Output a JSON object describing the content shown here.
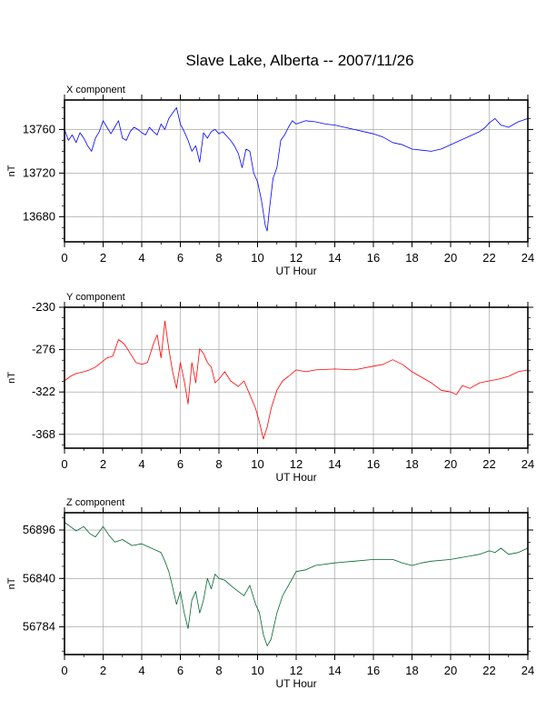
{
  "title": "Slave Lake, Alberta -- 2007/11/26",
  "chart_data": [
    {
      "type": "line",
      "panel_label": "X component",
      "xlabel": "UT Hour",
      "ylabel": "nT",
      "xlim": [
        0,
        24
      ],
      "ylim": [
        13657,
        13787
      ],
      "xticks": [
        0,
        2,
        4,
        6,
        8,
        10,
        12,
        14,
        16,
        18,
        20,
        22,
        24
      ],
      "yticks": [
        13680,
        13720,
        13760
      ],
      "grid": true,
      "color": "#0000ff",
      "x": [
        0,
        0.2,
        0.4,
        0.6,
        0.8,
        1.0,
        1.2,
        1.4,
        1.6,
        1.8,
        2.0,
        2.2,
        2.4,
        2.6,
        2.8,
        3.0,
        3.2,
        3.4,
        3.6,
        3.8,
        4.0,
        4.2,
        4.4,
        4.6,
        4.8,
        5.0,
        5.2,
        5.4,
        5.6,
        5.8,
        6.0,
        6.2,
        6.4,
        6.6,
        6.8,
        7.0,
        7.2,
        7.4,
        7.6,
        7.8,
        8.0,
        8.2,
        8.4,
        8.6,
        8.8,
        9.0,
        9.2,
        9.4,
        9.6,
        9.8,
        10.0,
        10.2,
        10.4,
        10.5,
        10.6,
        10.8,
        11.0,
        11.2,
        11.4,
        11.6,
        11.8,
        12.0,
        12.5,
        13.0,
        13.5,
        14.0,
        14.5,
        15.0,
        15.5,
        16.0,
        16.5,
        17.0,
        17.5,
        18.0,
        18.5,
        19.0,
        19.5,
        20.0,
        20.5,
        21.0,
        21.5,
        21.8,
        22.0,
        22.3,
        22.6,
        23.0,
        23.5,
        24.0
      ],
      "y": [
        13760,
        13750,
        13755,
        13748,
        13757,
        13752,
        13745,
        13740,
        13752,
        13758,
        13768,
        13762,
        13756,
        13762,
        13768,
        13752,
        13750,
        13758,
        13762,
        13760,
        13757,
        13755,
        13762,
        13758,
        13755,
        13765,
        13760,
        13770,
        13775,
        13780,
        13765,
        13758,
        13750,
        13740,
        13745,
        13730,
        13757,
        13752,
        13758,
        13760,
        13756,
        13758,
        13754,
        13750,
        13745,
        13738,
        13725,
        13742,
        13740,
        13720,
        13712,
        13695,
        13672,
        13667,
        13685,
        13715,
        13725,
        13750,
        13755,
        13762,
        13768,
        13765,
        13768,
        13767,
        13765,
        13764,
        13762,
        13760,
        13758,
        13756,
        13753,
        13748,
        13746,
        13742,
        13741,
        13740,
        13742,
        13746,
        13750,
        13754,
        13758,
        13762,
        13766,
        13770,
        13764,
        13762,
        13767,
        13770
      ]
    },
    {
      "type": "line",
      "panel_label": "Y component",
      "xlabel": "UT Hour",
      "ylabel": "nT",
      "xlim": [
        0,
        24
      ],
      "ylim": [
        -383,
        -230
      ],
      "xticks": [
        0,
        2,
        4,
        6,
        8,
        10,
        12,
        14,
        16,
        18,
        20,
        22,
        24
      ],
      "yticks": [
        -230,
        -276,
        -322,
        -368
      ],
      "grid": true,
      "color": "#ff0000",
      "x": [
        0,
        0.3,
        0.6,
        1.0,
        1.3,
        1.6,
        1.9,
        2.2,
        2.5,
        2.8,
        3.1,
        3.4,
        3.7,
        4.0,
        4.3,
        4.6,
        4.8,
        5.0,
        5.2,
        5.4,
        5.6,
        5.8,
        6.0,
        6.2,
        6.4,
        6.6,
        6.8,
        7.0,
        7.2,
        7.4,
        7.6,
        7.8,
        8.0,
        8.3,
        8.6,
        9.0,
        9.3,
        9.6,
        9.9,
        10.1,
        10.3,
        10.5,
        10.7,
        11.0,
        11.3,
        11.6,
        12.0,
        12.5,
        13.0,
        14.0,
        15.0,
        16.0,
        16.5,
        17.0,
        17.5,
        18.0,
        18.5,
        19.0,
        19.5,
        20.0,
        20.3,
        20.6,
        21.0,
        21.5,
        22.0,
        22.5,
        23.0,
        23.5,
        24.0
      ],
      "y": [
        -310,
        -305,
        -302,
        -300,
        -298,
        -295,
        -290,
        -285,
        -283,
        -265,
        -270,
        -280,
        -290,
        -292,
        -290,
        -270,
        -260,
        -285,
        -245,
        -275,
        -300,
        -318,
        -290,
        -310,
        -335,
        -290,
        -312,
        -275,
        -280,
        -290,
        -295,
        -312,
        -308,
        -300,
        -310,
        -316,
        -310,
        -325,
        -340,
        -355,
        -373,
        -360,
        -340,
        -320,
        -310,
        -305,
        -298,
        -300,
        -298,
        -297,
        -298,
        -294,
        -292,
        -287,
        -292,
        -300,
        -306,
        -312,
        -320,
        -322,
        -325,
        -315,
        -318,
        -312,
        -310,
        -308,
        -305,
        -300,
        -298
      ]
    },
    {
      "type": "line",
      "panel_label": "Z component",
      "xlabel": "UT Hour",
      "ylabel": "nT",
      "xlim": [
        0,
        24
      ],
      "ylim": [
        56752,
        56916
      ],
      "xticks": [
        0,
        2,
        4,
        6,
        8,
        10,
        12,
        14,
        16,
        18,
        20,
        22,
        24
      ],
      "yticks": [
        56784,
        56840,
        56896
      ],
      "grid": true,
      "color": "#006633",
      "x": [
        0,
        0.3,
        0.6,
        1.0,
        1.3,
        1.6,
        2.0,
        2.3,
        2.6,
        3.0,
        3.5,
        4.0,
        4.5,
        5.0,
        5.2,
        5.4,
        5.6,
        5.8,
        6.0,
        6.2,
        6.4,
        6.6,
        6.8,
        7.0,
        7.2,
        7.4,
        7.6,
        7.8,
        8.0,
        8.3,
        8.6,
        9.0,
        9.3,
        9.6,
        9.9,
        10.1,
        10.3,
        10.5,
        10.7,
        11.0,
        11.3,
        11.6,
        12.0,
        12.5,
        13.0,
        14.0,
        15.0,
        16.0,
        17.0,
        17.5,
        18.0,
        18.5,
        19.0,
        20.0,
        21.0,
        21.5,
        22.0,
        22.3,
        22.6,
        23.0,
        23.5,
        24.0
      ],
      "y": [
        56905,
        56900,
        56895,
        56900,
        56892,
        56888,
        56900,
        56890,
        56882,
        56885,
        56878,
        56880,
        56875,
        56870,
        56860,
        56848,
        56830,
        56810,
        56825,
        56800,
        56782,
        56815,
        56825,
        56800,
        56815,
        56840,
        56828,
        56845,
        56840,
        56838,
        56832,
        56825,
        56820,
        56832,
        56810,
        56800,
        56775,
        56762,
        56770,
        56800,
        56820,
        56832,
        56848,
        56850,
        56855,
        56858,
        56860,
        56862,
        56862,
        56858,
        56855,
        56858,
        56860,
        56862,
        56866,
        56868,
        56872,
        56870,
        56875,
        56868,
        56870,
        56875
      ]
    }
  ]
}
